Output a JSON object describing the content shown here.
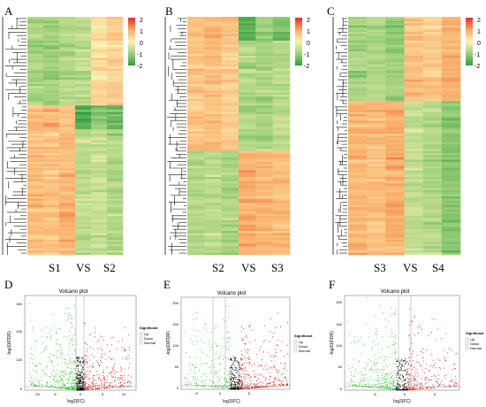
{
  "chart_data": [
    {
      "type": "heatmap",
      "panel_label": "A",
      "group_labels": [
        "S1",
        "VS",
        "S2"
      ],
      "columns": 6,
      "colorbar": {
        "ticks": [
          "2",
          "1",
          "0",
          "-1",
          "-2"
        ],
        "range": [
          -2,
          2
        ]
      },
      "blocks": [
        {
          "rows_fraction": 0.37,
          "values": [
            -0.9,
            -1.0,
            -0.8,
            -0.7,
            0.3,
            0.5
          ]
        },
        {
          "rows_fraction": 0.1,
          "values": [
            0.8,
            0.9,
            0.7,
            -1.6,
            -1.2,
            -1.4
          ]
        },
        {
          "rows_fraction": 0.53,
          "values": [
            0.7,
            0.6,
            0.8,
            -0.7,
            -0.6,
            -0.8
          ]
        }
      ]
    },
    {
      "type": "heatmap",
      "panel_label": "B",
      "group_labels": [
        "S2",
        "VS",
        "S3"
      ],
      "columns": 6,
      "colorbar": {
        "ticks": [
          "2",
          "1",
          "0",
          "-1",
          "-2"
        ],
        "range": [
          -2,
          2
        ]
      },
      "blocks": [
        {
          "rows_fraction": 0.1,
          "values": [
            0.7,
            0.8,
            0.6,
            -1.6,
            -1.0,
            -1.4
          ]
        },
        {
          "rows_fraction": 0.46,
          "values": [
            0.6,
            0.7,
            0.5,
            -0.8,
            -0.9,
            -0.7
          ]
        },
        {
          "rows_fraction": 0.44,
          "values": [
            -0.8,
            -0.7,
            -0.9,
            0.9,
            0.8,
            0.7
          ]
        }
      ]
    },
    {
      "type": "heatmap",
      "panel_label": "C",
      "group_labels": [
        "S3",
        "VS",
        "S4"
      ],
      "columns": 6,
      "colorbar": {
        "ticks": [
          "2",
          "1",
          "0",
          "-1",
          "-2"
        ],
        "range": [
          -2,
          2
        ]
      },
      "blocks": [
        {
          "rows_fraction": 0.35,
          "values": [
            -0.9,
            -0.8,
            -1.0,
            0.7,
            0.6,
            0.9
          ]
        },
        {
          "rows_fraction": 0.65,
          "values": [
            0.8,
            0.7,
            0.9,
            -0.6,
            -0.8,
            -1.2
          ]
        }
      ]
    },
    {
      "type": "scatter",
      "panel_label": "D",
      "title": "Volcano plot",
      "xlabel": "log2(FC)",
      "ylabel": "-log10(FDR)",
      "xlim": [
        -15,
        15
      ],
      "ylim": [
        0,
        320
      ],
      "xticks": [
        "-10",
        "-5",
        "0",
        "5",
        "10"
      ],
      "yticks": [
        "0",
        "100",
        "200",
        "300"
      ],
      "legend": {
        "title": "Significant",
        "entries": [
          "Up",
          "Down",
          "Normal"
        ],
        "position": "right"
      },
      "colors": {
        "Up": "#e41a1c",
        "Down": "#33cc33",
        "Normal": "#000000"
      },
      "thresholds": {
        "x": [
          -1,
          1
        ],
        "y": 1.3
      },
      "point_counts": {
        "Up": 320,
        "Down": 420,
        "Normal": 240
      }
    },
    {
      "type": "scatter",
      "panel_label": "E",
      "title": "Volcano plot",
      "xlabel": "log2(FC)",
      "ylabel": "-log10(FDR)",
      "xlim": [
        -10,
        10
      ],
      "ylim": [
        0,
        210
      ],
      "xticks": [
        "-5",
        "0",
        "5"
      ],
      "yticks": [
        "0",
        "50",
        "100",
        "150",
        "200"
      ],
      "legend": {
        "title": "Significant",
        "entries": [
          "Up",
          "Down",
          "Normal"
        ],
        "position": "right"
      },
      "colors": {
        "Up": "#e41a1c",
        "Down": "#33cc33",
        "Normal": "#000000"
      },
      "thresholds": {
        "x": [
          -1,
          1
        ],
        "y": 1.3
      },
      "point_counts": {
        "Up": 330,
        "Down": 220,
        "Normal": 200
      }
    },
    {
      "type": "scatter",
      "panel_label": "F",
      "title": "Volcano plot",
      "xlabel": "log2(FC)",
      "ylabel": "-log10(FDR)",
      "xlim": [
        -10,
        10
      ],
      "ylim": [
        0,
        220
      ],
      "xticks": [
        "-5",
        "0",
        "5"
      ],
      "yticks": [
        "0",
        "50",
        "100",
        "150",
        "200"
      ],
      "legend": {
        "title": "Significant",
        "entries": [
          "Up",
          "Down",
          "Normal"
        ],
        "position": "right"
      },
      "colors": {
        "Up": "#e41a1c",
        "Down": "#33cc33",
        "Normal": "#000000"
      },
      "thresholds": {
        "x": [
          -1,
          1
        ],
        "y": 1.3
      },
      "point_counts": {
        "Up": 260,
        "Down": 330,
        "Normal": 160
      }
    }
  ]
}
